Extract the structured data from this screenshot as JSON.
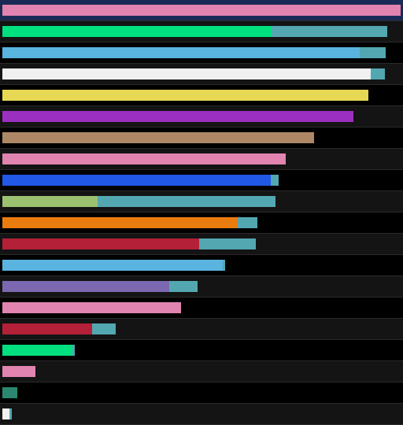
{
  "chart_data": {
    "type": "bar",
    "orientation": "horizontal",
    "stacked": true,
    "max": 100,
    "extension_color": "#53a7b1",
    "selected_row_background": "#1a2a55",
    "rows": [
      {
        "color": "#e184b0",
        "value": 99.8,
        "extra": 0.0,
        "selected": true
      },
      {
        "color": "#00e07f",
        "value": 67.5,
        "extra": 28.9
      },
      {
        "color": "#5ab4e0",
        "value": 89.6,
        "extra": 6.5
      },
      {
        "color": "#f0f0f0",
        "value": 92.4,
        "extra": 3.5
      },
      {
        "color": "#e6d855",
        "value": 91.8,
        "extra": 0.0
      },
      {
        "color": "#9b2fc0",
        "value": 87.9,
        "extra": 0.0
      },
      {
        "color": "#ae8866",
        "value": 78.1,
        "extra": 0.0
      },
      {
        "color": "#e184b0",
        "value": 71.1,
        "extra": 0.0
      },
      {
        "color": "#2258e6",
        "value": 67.2,
        "extra": 2.0
      },
      {
        "color": "#9ac070",
        "value": 23.9,
        "extra": 44.6
      },
      {
        "color": "#ea7b0f",
        "value": 58.9,
        "extra": 4.9
      },
      {
        "color": "#b32038",
        "value": 49.4,
        "extra": 14.2
      },
      {
        "color": "#5ab4e0",
        "value": 55.2,
        "extra": 0.6
      },
      {
        "color": "#7b68b0",
        "value": 41.9,
        "extra": 7.1
      },
      {
        "color": "#e184b0",
        "value": 44.8,
        "extra": 0.0
      },
      {
        "color": "#b32038",
        "value": 22.5,
        "extra": 5.9
      },
      {
        "color": "#00e07f",
        "value": 17.5,
        "extra": 0.6
      },
      {
        "color": "#e184b0",
        "value": 8.3,
        "extra": 0.0
      },
      {
        "color": "#2a8870",
        "value": 3.8,
        "extra": 0.0
      },
      {
        "color": "#f0f0f0",
        "value": 1.8,
        "extra": 0.6
      }
    ]
  }
}
